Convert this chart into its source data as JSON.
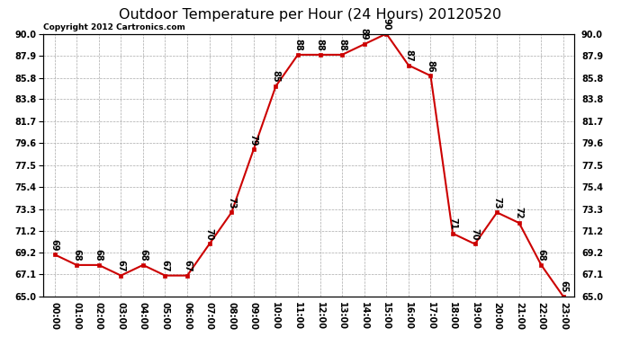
{
  "title": "Outdoor Temperature per Hour (24 Hours) 20120520",
  "copyright": "Copyright 2012 Cartronics.com",
  "hours": [
    "00:00",
    "01:00",
    "02:00",
    "03:00",
    "04:00",
    "05:00",
    "06:00",
    "07:00",
    "08:00",
    "09:00",
    "10:00",
    "11:00",
    "12:00",
    "13:00",
    "14:00",
    "15:00",
    "16:00",
    "17:00",
    "18:00",
    "19:00",
    "20:00",
    "21:00",
    "22:00",
    "23:00"
  ],
  "temps": [
    69,
    68,
    68,
    67,
    68,
    67,
    67,
    70,
    73,
    79,
    85,
    88,
    88,
    88,
    89,
    90,
    87,
    86,
    71,
    70,
    73,
    72,
    68,
    65
  ],
  "ylim": [
    65.0,
    90.0
  ],
  "yticks": [
    65.0,
    67.1,
    69.2,
    71.2,
    73.3,
    75.4,
    77.5,
    79.6,
    81.7,
    83.8,
    85.8,
    87.9,
    90.0
  ],
  "line_color": "#cc0000",
  "marker_color": "#cc0000",
  "bg_color": "#ffffff",
  "grid_color": "#aaaaaa",
  "title_fontsize": 11.5,
  "label_fontsize": 7,
  "annot_fontsize": 7,
  "copyright_fontsize": 6.5
}
